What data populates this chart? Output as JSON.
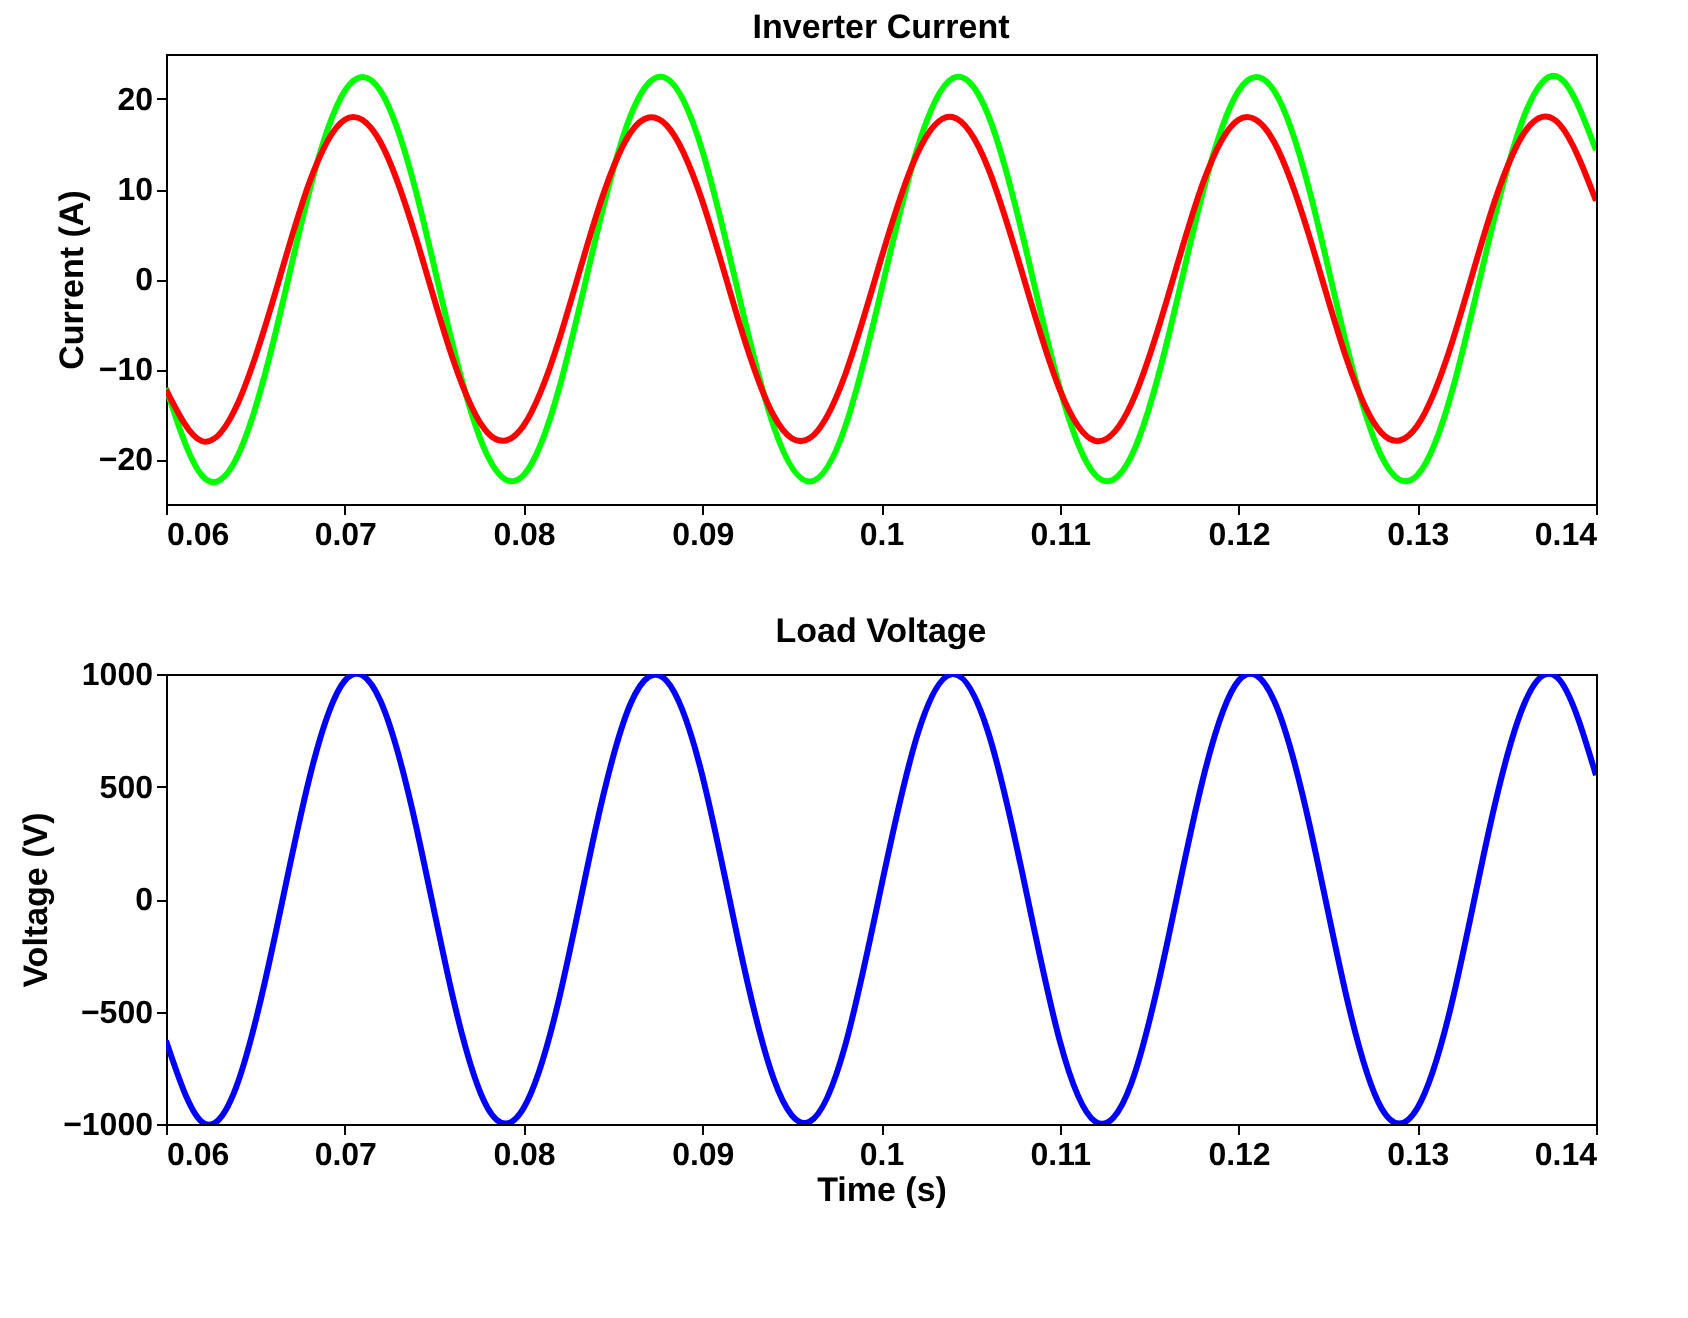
{
  "chart_data": [
    {
      "type": "line",
      "title": "Inverter Current",
      "ylabel": "Current (A)",
      "x": [
        0.06,
        0.062,
        0.064,
        0.066,
        0.068,
        0.07,
        0.072,
        0.074,
        0.076,
        0.078,
        0.08,
        0.082,
        0.084,
        0.086,
        0.088,
        0.09,
        0.092,
        0.094,
        0.096,
        0.098,
        0.1,
        0.102,
        0.104,
        0.106,
        0.108,
        0.11,
        0.112,
        0.114,
        0.116,
        0.118,
        0.12,
        0.122,
        0.124,
        0.126,
        0.128,
        0.13,
        0.132,
        0.134,
        0.136,
        0.138,
        0.14
      ],
      "series": [
        {
          "color": "#00ff00",
          "values": [
            -12.1,
            -21.8,
            -19.7,
            -7.0,
            9.6,
            20.9,
            20.9,
            9.6,
            -7.0,
            -19.7,
            -21.8,
            -12.1,
            4.2,
            18.2,
            22.3,
            14.3,
            -1.4,
            -16.4,
            -22.5,
            -16.4,
            -1.4,
            14.3,
            22.3,
            18.2,
            4.2,
            -12.1,
            -21.8,
            -19.7,
            -7.0,
            9.6,
            20.9,
            20.9,
            9.6,
            -7.0,
            -19.7,
            -21.8,
            -12.1,
            4.2,
            18.2,
            22.3,
            14.3
          ]
        },
        {
          "color": "#ff0000",
          "values": [
            -12.3,
            -18.0,
            -13.9,
            -2.3,
            10.6,
            17.7,
            15.2,
            4.5,
            -8.6,
            -17.1,
            -16.3,
            -6.7,
            6.6,
            16.3,
            17.1,
            8.7,
            -4.4,
            -15.2,
            -17.7,
            -10.6,
            2.2,
            13.8,
            18.0,
            12.3,
            0.0,
            -12.3,
            -18.0,
            -13.9,
            -2.3,
            10.6,
            17.7,
            15.2,
            4.5,
            -8.6,
            -17.1,
            -16.3,
            -6.7,
            6.6,
            16.3,
            17.1,
            8.7
          ]
        }
      ],
      "xlim": [
        0.06,
        0.14
      ],
      "xticks": [
        0.06,
        0.07,
        0.08,
        0.09,
        0.1,
        0.11,
        0.12,
        0.13,
        0.14
      ],
      "ylim": [
        -25,
        25
      ],
      "yticks": [
        -20,
        -10,
        0,
        10,
        20
      ]
    },
    {
      "type": "line",
      "title": "Load Voltage",
      "xlabel": "Time (s)",
      "ylabel": "Voltage (V)",
      "x": [
        0.06,
        0.062,
        0.064,
        0.066,
        0.068,
        0.07,
        0.072,
        0.074,
        0.076,
        0.078,
        0.08,
        0.082,
        0.084,
        0.086,
        0.088,
        0.09,
        0.092,
        0.094,
        0.096,
        0.098,
        0.1,
        0.102,
        0.104,
        0.106,
        0.108,
        0.11,
        0.112,
        0.114,
        0.116,
        0.118,
        0.12,
        0.122,
        0.124,
        0.126,
        0.128,
        0.13,
        0.132,
        0.134,
        0.136,
        0.138,
        0.14
      ],
      "series": [
        {
          "color": "#0000ff",
          "values": [
            -630,
            -990,
            -820,
            -200,
            530,
            970,
            880,
            320,
            -420,
            -930,
            -930,
            -440,
            300,
            870,
            970,
            550,
            -180,
            -800,
            -990,
            -650,
            50,
            720,
            1000,
            740,
            80,
            -630,
            -990,
            -820,
            -200,
            530,
            970,
            880,
            320,
            -420,
            -930,
            -930,
            -440,
            300,
            870,
            970,
            550
          ]
        }
      ],
      "xlim": [
        0.06,
        0.14
      ],
      "xticks": [
        0.06,
        0.07,
        0.08,
        0.09,
        0.1,
        0.11,
        0.12,
        0.13,
        0.14
      ],
      "ylim": [
        -1000,
        1000
      ],
      "yticks": [
        -1000,
        -500,
        0,
        500,
        1000
      ]
    }
  ]
}
